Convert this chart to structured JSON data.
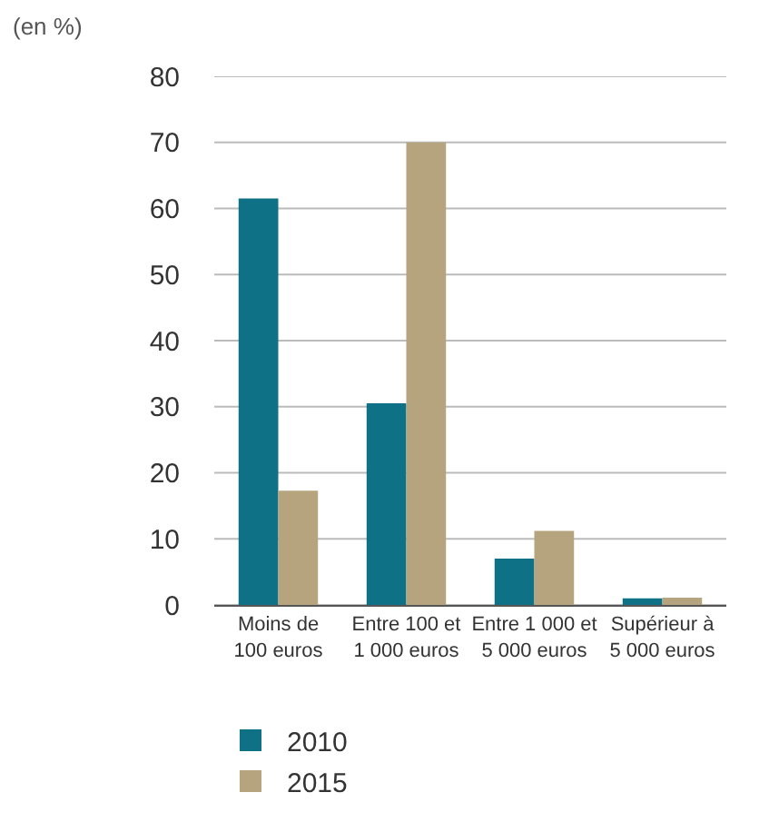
{
  "chart_data": {
    "type": "bar",
    "ylabel": "(en %)",
    "categories": [
      "Moins de\n100 euros",
      "Entre 100 et\n1 000 euros",
      "Entre 1 000 et\n5 000 euros",
      "Supérieur à\n5 000 euros"
    ],
    "series": [
      {
        "name": "2010",
        "color": "#0e7186",
        "values": [
          61.5,
          30.5,
          7,
          1
        ]
      },
      {
        "name": "2015",
        "color": "#b5a47e",
        "values": [
          17.3,
          70,
          11.2,
          1.1
        ]
      }
    ],
    "ylim": [
      0,
      80
    ],
    "yticks": [
      0,
      10,
      20,
      30,
      40,
      50,
      60,
      70,
      80
    ],
    "grid": "y",
    "legend": "bottom left"
  }
}
